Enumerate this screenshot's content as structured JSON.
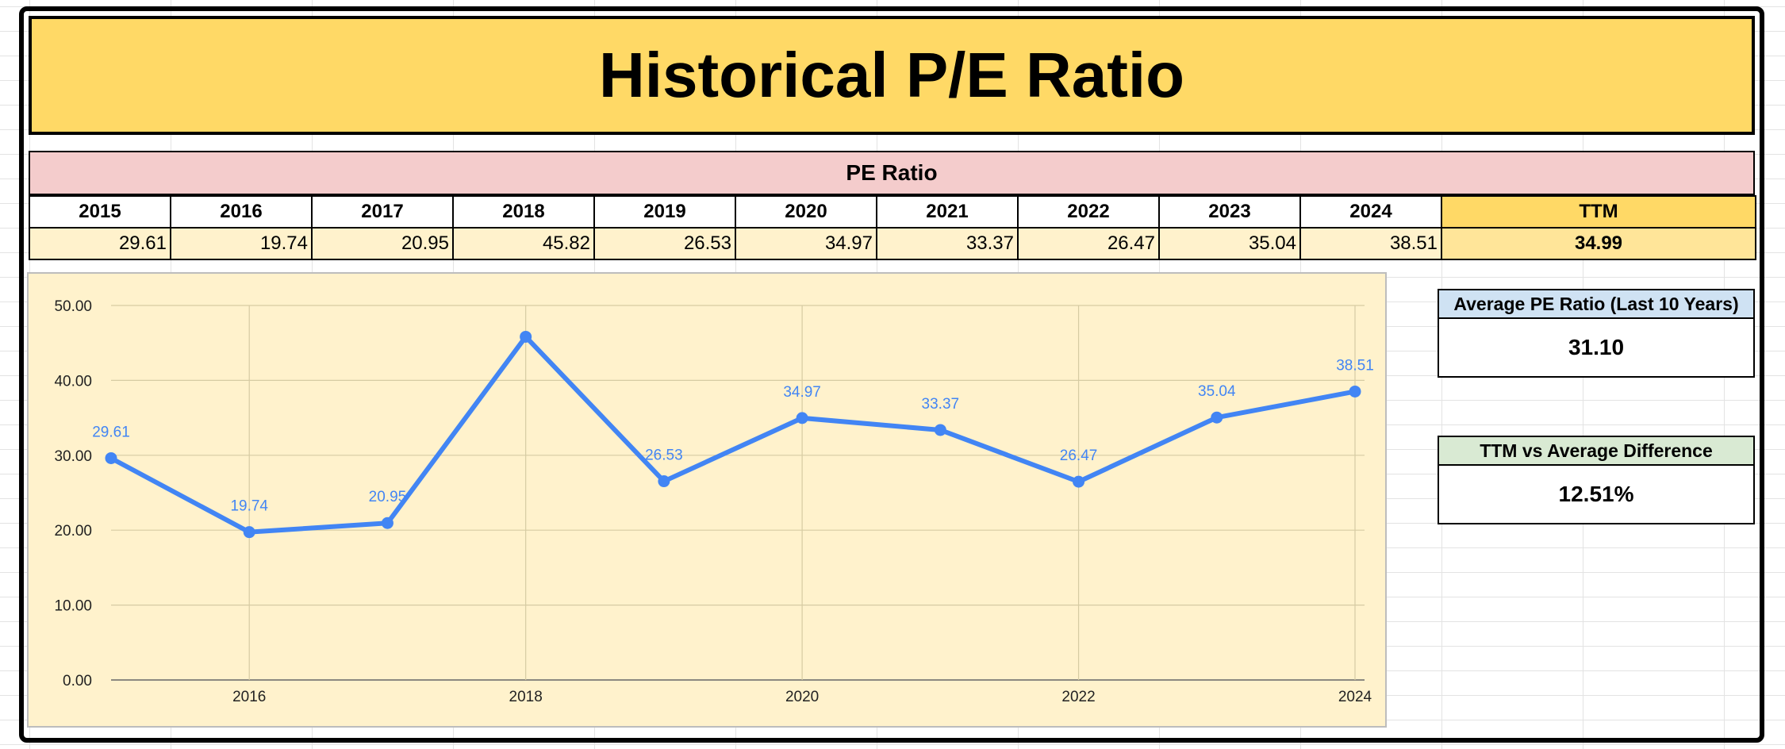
{
  "title": "Historical P/E Ratio",
  "table": {
    "header": "PE Ratio",
    "years": [
      "2015",
      "2016",
      "2017",
      "2018",
      "2019",
      "2020",
      "2021",
      "2022",
      "2023",
      "2024"
    ],
    "values": [
      "29.61",
      "19.74",
      "20.95",
      "45.82",
      "26.53",
      "34.97",
      "33.37",
      "26.47",
      "35.04",
      "38.51"
    ],
    "ttm_label": "TTM",
    "ttm_value": "34.99"
  },
  "stats": {
    "average_label": "Average PE Ratio (Last 10 Years)",
    "average_value": "31.10",
    "difference_label": "TTM vs Average Difference",
    "difference_value": "12.51%"
  },
  "colors": {
    "title_bg": "#ffd966",
    "header_bg": "#f4cccc",
    "chart_bg": "#fff2cc",
    "series": "#4285f4",
    "avg_bg": "#cfe2f3",
    "diff_bg": "#d9ead3"
  },
  "chart_data": {
    "type": "line",
    "x": [
      2015,
      2016,
      2017,
      2018,
      2019,
      2020,
      2021,
      2022,
      2023,
      2024
    ],
    "series": [
      {
        "values": [
          29.61,
          19.74,
          20.95,
          45.82,
          26.53,
          34.97,
          33.37,
          26.47,
          35.04,
          38.51
        ]
      }
    ],
    "data_labels": [
      "29.61",
      "19.74",
      "20.95",
      "45.82",
      "26.53",
      "34.97",
      "33.37",
      "26.47",
      "35.04",
      "38.51"
    ],
    "x_ticks": [
      "2016",
      "2018",
      "2020",
      "2022",
      "2024"
    ],
    "y_ticks": [
      "0.00",
      "10.00",
      "20.00",
      "30.00",
      "40.00",
      "50.00"
    ],
    "ylim": [
      0,
      50
    ],
    "xlim": [
      2015,
      2024
    ],
    "grid": true,
    "title": "",
    "xlabel": "",
    "ylabel": ""
  }
}
